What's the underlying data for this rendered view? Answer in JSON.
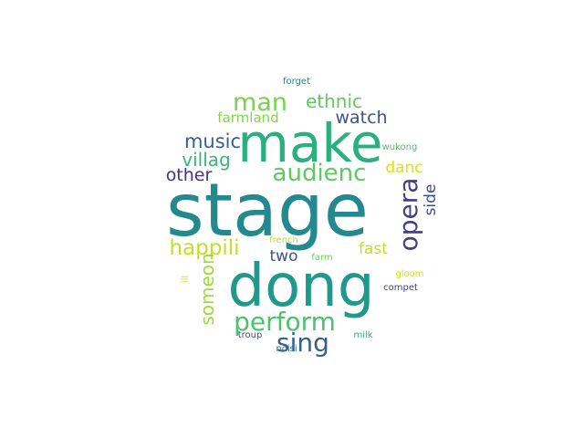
{
  "word_cloud": {
    "words": [
      {
        "text": "stage",
        "color": "#23898e"
      },
      {
        "text": "dong",
        "color": "#1f9a8a"
      },
      {
        "text": "make",
        "color": "#2ab07f"
      },
      {
        "text": "perform",
        "color": "#4cc26c"
      },
      {
        "text": "audienc",
        "color": "#5ec962"
      },
      {
        "text": "opera",
        "color": "#433e85"
      },
      {
        "text": "man",
        "color": "#7ad151"
      },
      {
        "text": "ethnic",
        "color": "#5ec962"
      },
      {
        "text": "sing",
        "color": "#355f8d"
      },
      {
        "text": "happili",
        "color": "#c2df23"
      },
      {
        "text": "music",
        "color": "#355f8d"
      },
      {
        "text": "villag",
        "color": "#35b779"
      },
      {
        "text": "watch",
        "color": "#3b528b"
      },
      {
        "text": "farmland",
        "color": "#86d549"
      },
      {
        "text": "other",
        "color": "#46327e"
      },
      {
        "text": "someon",
        "color": "#a0da39"
      },
      {
        "text": "danc",
        "color": "#d8e219"
      },
      {
        "text": "fast",
        "color": "#bddf26"
      },
      {
        "text": "side",
        "color": "#3e4a89"
      },
      {
        "text": "two",
        "color": "#3b528b"
      },
      {
        "text": "forget",
        "color": "#26828e"
      },
      {
        "text": "wukong",
        "color": "#4ac16d"
      },
      {
        "text": "french",
        "color": "#b5de2b"
      },
      {
        "text": "farm",
        "color": "#6ccd5a"
      },
      {
        "text": "gloom",
        "color": "#cae11f"
      },
      {
        "text": "compet",
        "color": "#433e85"
      },
      {
        "text": "ill",
        "color": "#d0e11c"
      },
      {
        "text": "troup",
        "color": "#3e4989"
      },
      {
        "text": "milk",
        "color": "#2db27d"
      },
      {
        "text": "noisi",
        "color": "#2c728e"
      }
    ]
  }
}
